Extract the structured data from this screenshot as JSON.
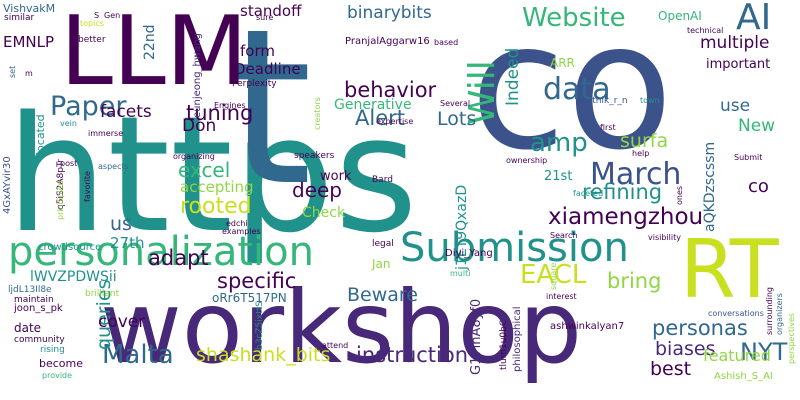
{
  "palette": {
    "background": "#ffffff",
    "dark_purple": "#440154",
    "indigo": "#3b528b",
    "blue": "#31688e",
    "teal": "#21918c",
    "green": "#35b779",
    "lime": "#90d743",
    "yellow": "#c8e020",
    "purple": "#482878"
  },
  "words": [
    {
      "text": "https",
      "color": "#21918c"
    },
    {
      "text": "t",
      "color": "#31688e"
    },
    {
      "text": "co",
      "color": "#3b528b"
    },
    {
      "text": "workshop",
      "color": "#482878"
    },
    {
      "text": "LLM",
      "color": "#440154"
    },
    {
      "text": "RT",
      "color": "#c8e020"
    },
    {
      "text": "personalization",
      "color": "#35b779"
    },
    {
      "text": "Submission",
      "color": "#21918c"
    },
    {
      "text": "Paper",
      "color": "#31688e"
    },
    {
      "text": "March",
      "color": "#3b528b"
    },
    {
      "text": "Website",
      "color": "#35b779"
    },
    {
      "text": "AI",
      "color": "#31688e"
    },
    {
      "text": "Will",
      "color": "#35b779"
    },
    {
      "text": "data",
      "color": "#31688e"
    },
    {
      "text": "amp",
      "color": "#21918c"
    },
    {
      "text": "EACL",
      "color": "#c8e020"
    },
    {
      "text": "Malta",
      "color": "#31688e"
    },
    {
      "text": "NYT",
      "color": "#31688e"
    },
    {
      "text": "xiamengzhou",
      "color": "#440154"
    },
    {
      "text": "Alert",
      "color": "#31688e"
    },
    {
      "text": "behavior",
      "color": "#440154"
    },
    {
      "text": "rooted",
      "color": "#c8e020"
    },
    {
      "text": "tuning",
      "color": "#440154"
    },
    {
      "text": "refining",
      "color": "#21918c"
    },
    {
      "text": "specific",
      "color": "#440154"
    },
    {
      "text": "instruction",
      "color": "#482878"
    },
    {
      "text": "personas",
      "color": "#31688e"
    },
    {
      "text": "biases",
      "color": "#482878"
    },
    {
      "text": "shashank_bits",
      "color": "#c8e020"
    },
    {
      "text": "queries",
      "color": "#21918c"
    },
    {
      "text": "binarybits",
      "color": "#31688e"
    },
    {
      "text": "Lots",
      "color": "#31688e"
    },
    {
      "text": "excel",
      "color": "#35b779"
    },
    {
      "text": "deep",
      "color": "#440154"
    },
    {
      "text": "adapt",
      "color": "#440154"
    },
    {
      "text": "bring",
      "color": "#90d743"
    },
    {
      "text": "Beware",
      "color": "#31688e"
    },
    {
      "text": "best",
      "color": "#440154"
    },
    {
      "text": "featured",
      "color": "#90d743"
    },
    {
      "text": "multiple",
      "color": "#440154"
    },
    {
      "text": "use",
      "color": "#31688e"
    },
    {
      "text": "New",
      "color": "#35b779"
    },
    {
      "text": "Indeed",
      "color": "#21918c"
    },
    {
      "text": "surfa",
      "color": "#90d743"
    },
    {
      "text": "facets",
      "color": "#440154"
    },
    {
      "text": "Don",
      "color": "#440154"
    },
    {
      "text": "co",
      "color": "#440154"
    },
    {
      "text": "us",
      "color": "#31688e"
    },
    {
      "text": "cover",
      "color": "#440154"
    },
    {
      "text": "Deadline",
      "color": "#440154"
    },
    {
      "text": "standoff",
      "color": "#440154"
    },
    {
      "text": "form",
      "color": "#440154"
    },
    {
      "text": "EMNLP",
      "color": "#440154"
    },
    {
      "text": "Generative",
      "color": "#35b779"
    },
    {
      "text": "27th",
      "color": "#21918c"
    },
    {
      "text": "accepting",
      "color": "#90d743"
    },
    {
      "text": "Check",
      "color": "#90d743"
    },
    {
      "text": "work",
      "color": "#440154"
    },
    {
      "text": "21st",
      "color": "#21918c"
    },
    {
      "text": "important",
      "color": "#440154"
    },
    {
      "text": "22nd",
      "color": "#31688e"
    },
    {
      "text": "aQKDzscssm",
      "color": "#31688e"
    },
    {
      "text": "j1ET9QxazD",
      "color": "#21918c"
    },
    {
      "text": "G17inA8yf0",
      "color": "#482878"
    },
    {
      "text": "lWVZPDWSii",
      "color": "#21918c"
    },
    {
      "text": "oRr6T517PN",
      "color": "#31688e"
    },
    {
      "text": "VishvakM",
      "color": "#31688e"
    },
    {
      "text": "OpenAI",
      "color": "#35b779"
    },
    {
      "text": "ARR",
      "color": "#90d743"
    },
    {
      "text": "Jan",
      "color": "#90d743"
    },
    {
      "text": "date",
      "color": "#440154"
    },
    {
      "text": "become",
      "color": "#440154"
    },
    {
      "text": "located",
      "color": "#21918c"
    },
    {
      "text": "eunjeong_hwang",
      "color": "#482878"
    },
    {
      "text": "PranjalAggarw16",
      "color": "#440154"
    },
    {
      "text": "Perplexity",
      "color": "#440154"
    },
    {
      "text": "karthik_r_n",
      "color": "#3b528b"
    },
    {
      "text": "ashwinkalyan7",
      "color": "#440154"
    },
    {
      "text": "Ashish_S_AI",
      "color": "#90d743"
    },
    {
      "text": "Diyi_Yang",
      "color": "#440154"
    },
    {
      "text": "joon_s_pk",
      "color": "#440154"
    },
    {
      "text": "4GxAYvir30",
      "color": "#3b528b"
    },
    {
      "text": "q5iS2A8pTr",
      "color": "#440154"
    },
    {
      "text": "b3cZ5ixttS",
      "color": "#21918c"
    },
    {
      "text": "tlurn1u0bC",
      "color": "#440154"
    },
    {
      "text": "ljdL13Il8e",
      "color": "#31688e"
    },
    {
      "text": "crowdsource",
      "color": "#21918c"
    },
    {
      "text": "maintain",
      "color": "#440154"
    },
    {
      "text": "community",
      "color": "#440154"
    },
    {
      "text": "rising",
      "color": "#21918c"
    },
    {
      "text": "provide",
      "color": "#35b779"
    },
    {
      "text": "similar",
      "color": "#440154"
    },
    {
      "text": "better",
      "color": "#440154"
    },
    {
      "text": "set",
      "color": "#31688e"
    },
    {
      "text": "m",
      "color": "#440154"
    },
    {
      "text": "vein",
      "color": "#21918c"
    },
    {
      "text": "immerse",
      "color": "#440154"
    },
    {
      "text": "post",
      "color": "#440154"
    },
    {
      "text": "aspects",
      "color": "#31688e"
    },
    {
      "text": "principled",
      "color": "#90d743"
    },
    {
      "text": "favorite",
      "color": "#440154"
    },
    {
      "text": "organizing",
      "color": "#440154"
    },
    {
      "text": "speakers",
      "color": "#440154"
    },
    {
      "text": "Bard",
      "color": "#440154"
    },
    {
      "text": "edchi",
      "color": "#440154"
    },
    {
      "text": "examples",
      "color": "#440154"
    },
    {
      "text": "brilliant",
      "color": "#90d743"
    },
    {
      "text": "legal",
      "color": "#440154"
    },
    {
      "text": "multi",
      "color": "#35b779"
    },
    {
      "text": "attend",
      "color": "#440154"
    },
    {
      "text": "philosophical",
      "color": "#482878"
    },
    {
      "text": "conversations",
      "color": "#3b528b"
    },
    {
      "text": "square",
      "color": "#90d743"
    },
    {
      "text": "interest",
      "color": "#440154"
    },
    {
      "text": "organizers",
      "color": "#31688e"
    },
    {
      "text": "perspectives",
      "color": "#90d743"
    },
    {
      "text": "surrounding",
      "color": "#440154"
    },
    {
      "text": "Search",
      "color": "#440154"
    },
    {
      "text": "visibility",
      "color": "#440154"
    },
    {
      "text": "faceted",
      "color": "#21918c"
    },
    {
      "text": "help",
      "color": "#440154"
    },
    {
      "text": "Submit",
      "color": "#440154"
    },
    {
      "text": "ones",
      "color": "#440154"
    },
    {
      "text": "ownership",
      "color": "#440154"
    },
    {
      "text": "first",
      "color": "#440154"
    },
    {
      "text": "Several",
      "color": "#440154"
    },
    {
      "text": "expertise",
      "color": "#440154"
    },
    {
      "text": "based",
      "color": "#440154"
    },
    {
      "text": "Engines",
      "color": "#440154"
    },
    {
      "text": "creators",
      "color": "#90d743"
    },
    {
      "text": "town",
      "color": "#21918c"
    },
    {
      "text": "technical",
      "color": "#440154"
    },
    {
      "text": "topics",
      "color": "#c8e020"
    },
    {
      "text": "S",
      "color": "#440154"
    },
    {
      "text": "Gen",
      "color": "#440154"
    },
    {
      "text": "sure",
      "color": "#440154"
    }
  ]
}
